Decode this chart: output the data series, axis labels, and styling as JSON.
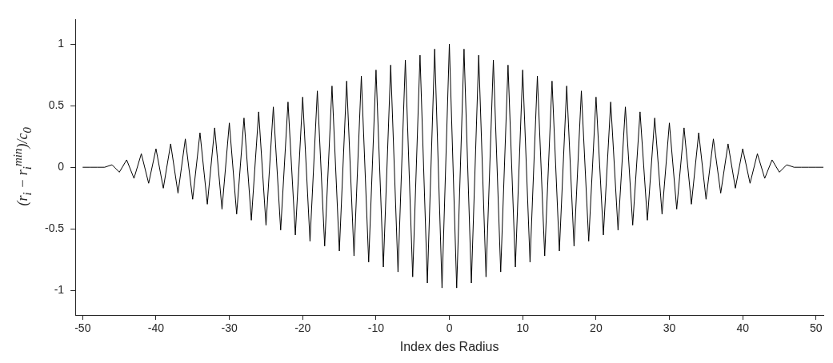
{
  "chart_data": {
    "type": "line",
    "xlabel": "Index des Radius",
    "ylabel": "(r$_{i}$ − r$_{i}$$^{min}$)/c$_{0}$",
    "x": [
      -50,
      -49,
      -48,
      -47,
      -46,
      -45,
      -44,
      -43,
      -42,
      -41,
      -40,
      -39,
      -38,
      -37,
      -36,
      -35,
      -34,
      -33,
      -32,
      -31,
      -30,
      -29,
      -28,
      -27,
      -26,
      -25,
      -24,
      -23,
      -22,
      -21,
      -20,
      -19,
      -18,
      -17,
      -16,
      -15,
      -14,
      -13,
      -12,
      -11,
      -10,
      -9,
      -8,
      -7,
      -6,
      -5,
      -4,
      -3,
      -2,
      -1,
      0,
      1,
      2,
      3,
      4,
      5,
      6,
      7,
      8,
      9,
      10,
      11,
      12,
      13,
      14,
      15,
      16,
      17,
      18,
      19,
      20,
      21,
      22,
      23,
      24,
      25,
      26,
      27,
      28,
      29,
      30,
      31,
      32,
      33,
      34,
      35,
      36,
      37,
      38,
      39,
      40,
      41,
      42,
      43,
      44,
      45,
      46,
      47,
      48,
      49,
      50,
      51
    ],
    "series": [
      {
        "color": "#000000",
        "values": [
          0,
          0,
          0,
          0,
          0.02,
          -0.04,
          0.06,
          -0.09,
          0.11,
          -0.13,
          0.15,
          -0.17,
          0.19,
          -0.21,
          0.23,
          -0.26,
          0.28,
          -0.3,
          0.32,
          -0.34,
          0.36,
          -0.38,
          0.4,
          -0.43,
          0.45,
          -0.47,
          0.49,
          -0.51,
          0.53,
          -0.55,
          0.57,
          -0.6,
          0.62,
          -0.64,
          0.66,
          -0.68,
          0.7,
          -0.72,
          0.74,
          -0.77,
          0.79,
          -0.81,
          0.83,
          -0.85,
          0.87,
          -0.89,
          0.91,
          -0.94,
          0.96,
          -0.98,
          1,
          -0.98,
          0.96,
          -0.94,
          0.91,
          -0.89,
          0.87,
          -0.85,
          0.83,
          -0.81,
          0.79,
          -0.77,
          0.74,
          -0.72,
          0.7,
          -0.68,
          0.66,
          -0.64,
          0.62,
          -0.6,
          0.57,
          -0.55,
          0.53,
          -0.51,
          0.49,
          -0.47,
          0.45,
          -0.43,
          0.4,
          -0.38,
          0.36,
          -0.34,
          0.32,
          -0.3,
          0.28,
          -0.26,
          0.23,
          -0.21,
          0.19,
          -0.17,
          0.15,
          -0.13,
          0.11,
          -0.09,
          0.06,
          -0.04,
          0.02,
          0,
          0,
          0,
          0,
          0
        ]
      }
    ],
    "xlim": [
      -51,
      51
    ],
    "xticks": [
      -50,
      -40,
      -30,
      -20,
      -10,
      0,
      10,
      20,
      30,
      40,
      50
    ],
    "ylim": [
      -1.2,
      1.2
    ],
    "yticks": [
      -1,
      -0.5,
      0,
      0.5,
      1
    ],
    "grid": false,
    "legend": false,
    "marker": "none",
    "line_style": "solid"
  }
}
